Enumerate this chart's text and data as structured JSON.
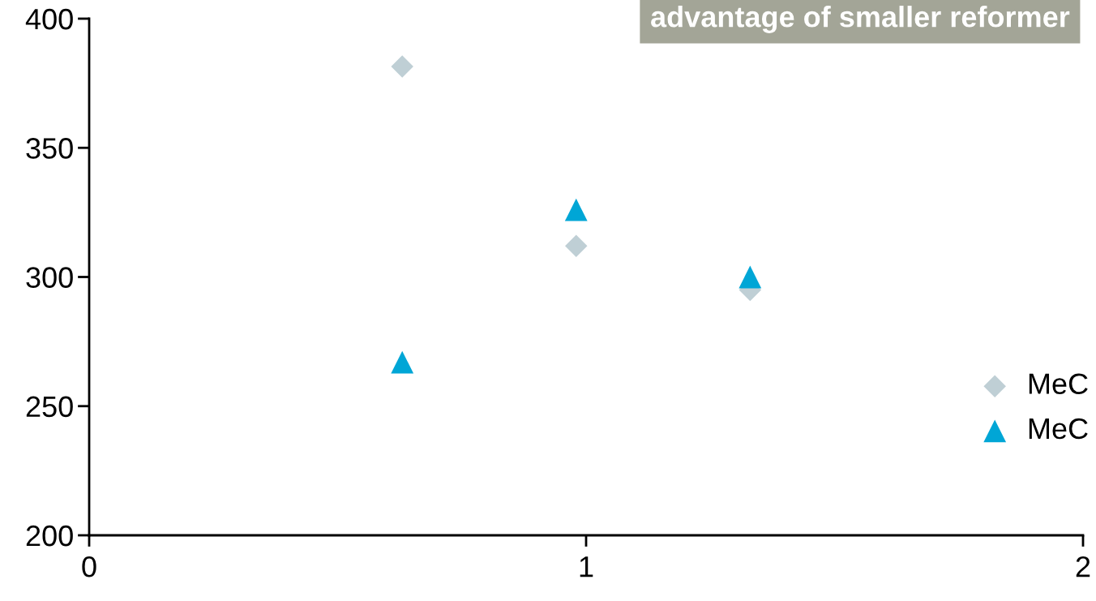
{
  "chart_data": {
    "type": "scatter",
    "annotations": [
      "advantage of smaller reformer"
    ],
    "series": [
      {
        "name": "MeC",
        "color": "#bfcfd5",
        "marker": "diamond",
        "x": [
          0.63,
          0.98,
          1.33
        ],
        "values": [
          381.5,
          312,
          295
        ]
      },
      {
        "name": "MeC",
        "color": "#00a6d6",
        "marker": "triangle",
        "x": [
          0.63,
          0.98,
          1.33
        ],
        "values": [
          267,
          326,
          300
        ]
      }
    ],
    "xlim": [
      0,
      2
    ],
    "xticks": [
      0,
      1,
      2
    ],
    "ylim": [
      200,
      400
    ],
    "yticks": [
      200,
      250,
      300,
      350,
      400
    ],
    "grid": false,
    "legend": "right"
  }
}
